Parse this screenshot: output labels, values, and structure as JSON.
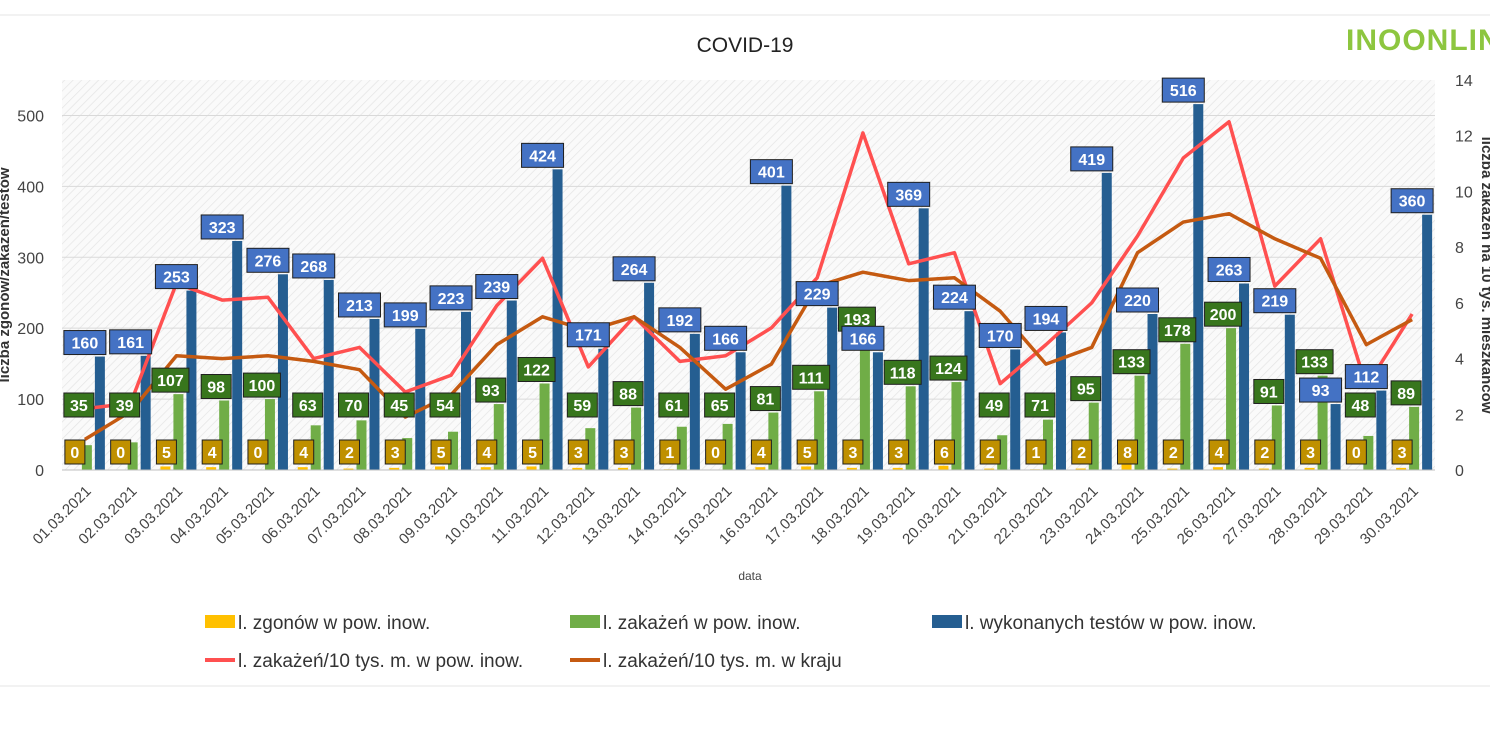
{
  "logo_text": "INOONLINE",
  "colors": {
    "deaths": "#FFC000",
    "infections": "#70AD47",
    "tests": "#255E91",
    "local_rate": "#FF5050",
    "national_rate": "#C55A11",
    "label_tests_bg": "#4472C4",
    "label_infections_bg": "#38761D",
    "label_deaths_bg": "#BF9000",
    "logo_green": "#8DC63F"
  },
  "chart_data": {
    "type": "bar",
    "title": "COVID-19",
    "xlabel": "data",
    "ylabel": "liczba zgonów/zakażeń/testów",
    "y2label": "liczba zakażeń na 10 tys. mieszkańców",
    "ylim": [
      0,
      550
    ],
    "y2lim": [
      0,
      14
    ],
    "yticks": [
      0,
      100,
      200,
      300,
      400,
      500
    ],
    "y2ticks": [
      0,
      2,
      4,
      6,
      8,
      10,
      12,
      14
    ],
    "categories": [
      "01.03.2021",
      "02.03.2021",
      "03.03.2021",
      "04.03.2021",
      "05.03.2021",
      "06.03.2021",
      "07.03.2021",
      "08.03.2021",
      "09.03.2021",
      "10.03.2021",
      "11.03.2021",
      "12.03.2021",
      "13.03.2021",
      "14.03.2021",
      "15.03.2021",
      "16.03.2021",
      "17.03.2021",
      "18.03.2021",
      "19.03.2021",
      "20.03.2021",
      "21.03.2021",
      "22.03.2021",
      "23.03.2021",
      "24.03.2021",
      "25.03.2021",
      "26.03.2021",
      "27.03.2021",
      "28.03.2021",
      "29.03.2021",
      "30.03.2021"
    ],
    "series": [
      {
        "name": "l. zgonów w pow. inow.",
        "type": "bar",
        "axis": "left",
        "values": [
          0,
          0,
          5,
          4,
          0,
          4,
          2,
          3,
          5,
          4,
          5,
          3,
          3,
          1,
          0,
          4,
          5,
          3,
          3,
          6,
          2,
          1,
          2,
          8,
          2,
          4,
          2,
          3,
          0,
          3
        ]
      },
      {
        "name": "l. zakażeń w pow. inow.",
        "type": "bar",
        "axis": "left",
        "values": [
          35,
          39,
          107,
          98,
          100,
          63,
          70,
          45,
          54,
          93,
          122,
          59,
          88,
          61,
          65,
          81,
          111,
          193,
          118,
          124,
          49,
          71,
          95,
          133,
          178,
          200,
          91,
          133,
          48,
          89
        ]
      },
      {
        "name": "l. wykonanych testów w pow. inow.",
        "type": "bar",
        "axis": "left",
        "values": [
          160,
          161,
          253,
          323,
          276,
          268,
          213,
          199,
          223,
          239,
          424,
          171,
          264,
          192,
          166,
          401,
          229,
          166,
          369,
          224,
          170,
          194,
          419,
          220,
          516,
          263,
          219,
          93,
          112,
          360
        ]
      },
      {
        "name": "l. zakażeń/10 tys. m. w pow. inow.",
        "type": "line",
        "axis": "right",
        "values": [
          2.2,
          2.4,
          6.7,
          6.1,
          6.2,
          4.0,
          4.4,
          2.8,
          3.4,
          5.9,
          7.6,
          3.7,
          5.5,
          3.9,
          4.1,
          5.1,
          6.9,
          12.1,
          7.4,
          7.8,
          3.1,
          4.5,
          6.0,
          8.4,
          11.2,
          12.5,
          6.6,
          8.3,
          3.0,
          5.6
        ]
      },
      {
        "name": "l. zakażeń/10 tys. m. w kraju",
        "type": "line",
        "axis": "right",
        "values": [
          1.1,
          2.1,
          4.1,
          4.0,
          4.1,
          3.9,
          3.6,
          1.9,
          2.7,
          4.5,
          5.5,
          5.0,
          5.5,
          4.4,
          2.9,
          3.8,
          6.6,
          7.1,
          6.8,
          6.9,
          5.7,
          3.8,
          4.4,
          7.8,
          8.9,
          9.2,
          8.3,
          7.6,
          4.5,
          5.4
        ]
      }
    ],
    "legend_position": "bottom"
  }
}
